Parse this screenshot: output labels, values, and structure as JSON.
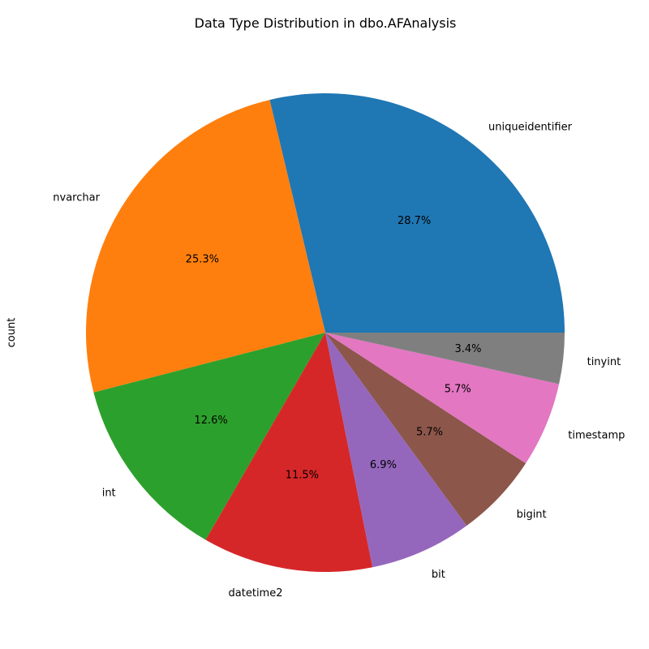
{
  "chart_data": {
    "type": "pie",
    "title": "Data Type Distribution in dbo.AFAnalysis",
    "ylabel": "count",
    "categories": [
      "uniqueidentifier",
      "nvarchar",
      "int",
      "datetime2",
      "bit",
      "bigint",
      "timestamp",
      "tinyint"
    ],
    "values": [
      25,
      22,
      11,
      10,
      6,
      5,
      5,
      3
    ],
    "percent_labels": [
      "28.7%",
      "25.3%",
      "12.6%",
      "11.5%",
      "6.9%",
      "5.7%",
      "5.7%",
      "3.4%"
    ],
    "colors": [
      "#1f77b4",
      "#ff7f0e",
      "#2ca02c",
      "#d62728",
      "#9467bd",
      "#8c564b",
      "#e377c2",
      "#7f7f7f"
    ],
    "start_angle_deg": 0,
    "direction": "counterclockwise"
  }
}
